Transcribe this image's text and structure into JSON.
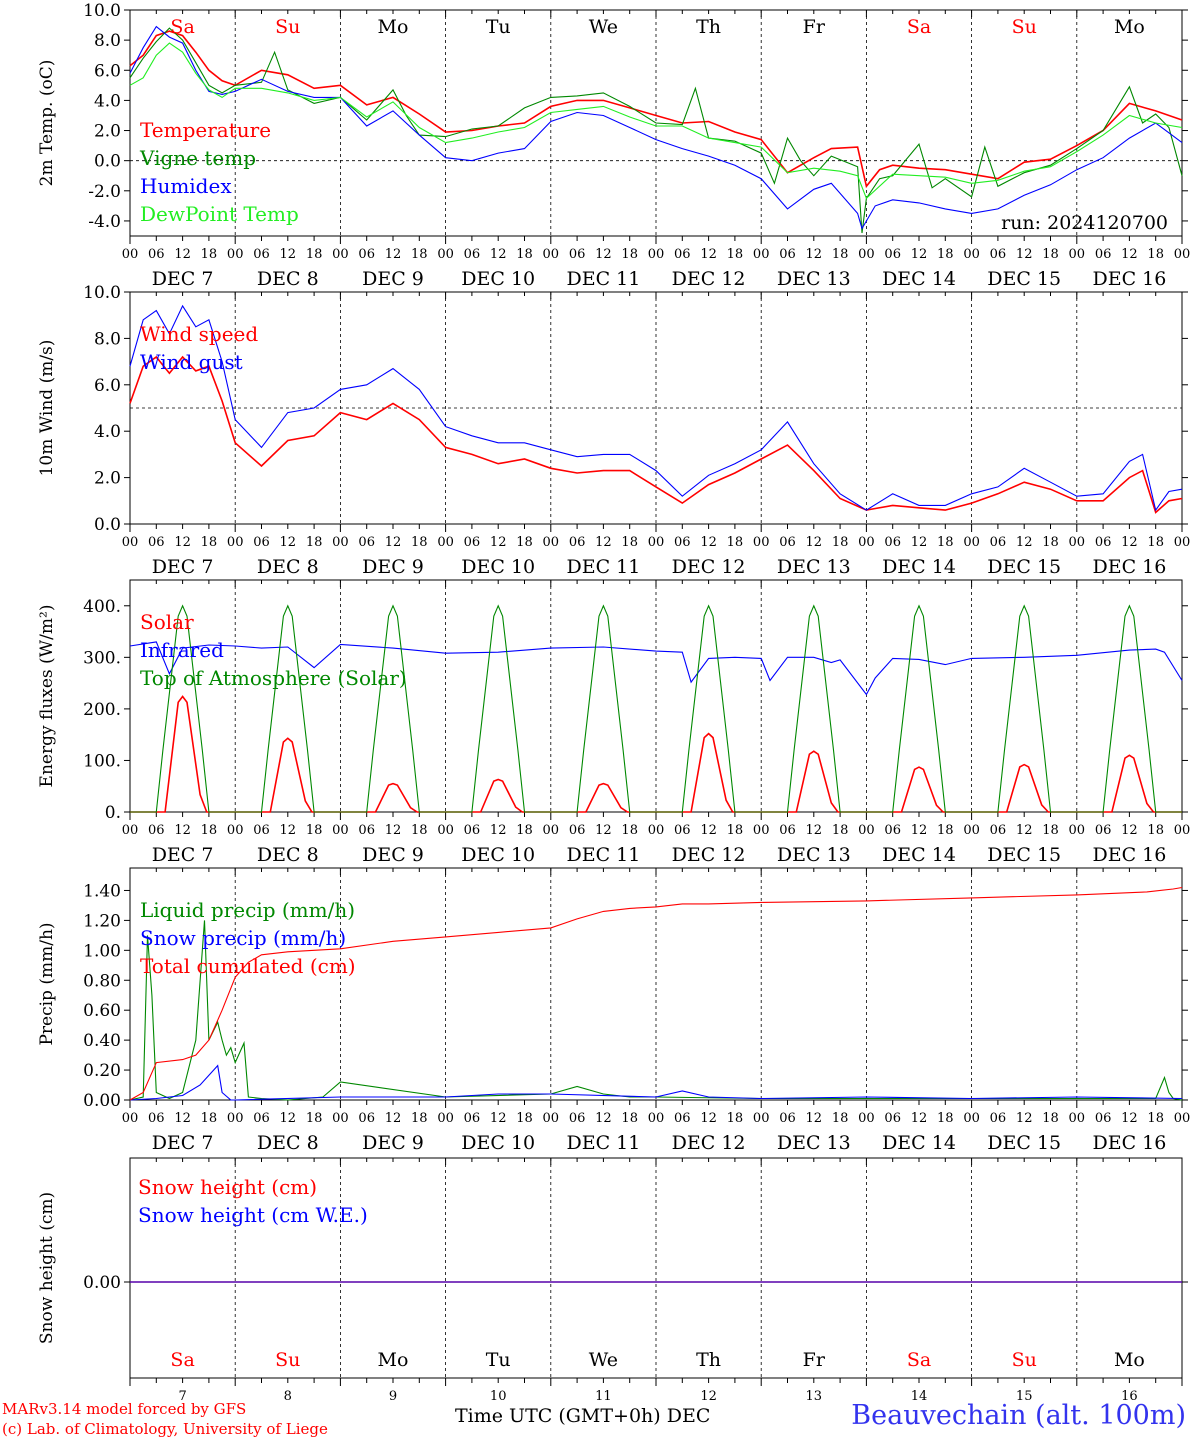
{
  "x_axis": {
    "hour_labels": [
      "00",
      "06",
      "12",
      "18"
    ],
    "date_labels": [
      "DEC  7",
      "DEC  8",
      "DEC  9",
      "DEC 10",
      "DEC 11",
      "DEC 12",
      "DEC 13",
      "DEC 14",
      "DEC 15",
      "DEC 16"
    ],
    "weekday_labels": [
      "Sa",
      "Su",
      "Mo",
      "Tu",
      "We",
      "Th",
      "Fr",
      "Sa",
      "Su",
      "Mo"
    ],
    "weekday_colors": [
      "#ff0000",
      "#ff0000",
      "#000000",
      "#000000",
      "#000000",
      "#000000",
      "#000000",
      "#ff0000",
      "#ff0000",
      "#000000"
    ],
    "day_numbers": [
      "7",
      "8",
      "9",
      "10",
      "11",
      "12",
      "13",
      "14",
      "15",
      "16"
    ],
    "title": "Time UTC (GMT+0h)",
    "month": "DEC"
  },
  "footer": {
    "credit_line1": "MARv3.14 model forced by GFS",
    "credit_line2": "(c) Lab. of Climatology, University of Liege",
    "station": "Beauvechain (alt. 100m)"
  },
  "chart_data": [
    {
      "type": "line",
      "ylabel": "2m Temp. (oC)",
      "ylim": [
        -5,
        10
      ],
      "yticks": [
        10,
        8,
        6,
        4,
        2,
        0,
        -2,
        -4
      ],
      "ytick_labels": [
        "10.0",
        "8.0",
        "6.0",
        "4.0",
        "2.0",
        "0.0",
        "-2.0",
        "-4.0"
      ],
      "reference_line": 0,
      "annotation": "run: 2024120700",
      "series": [
        {
          "name": "Temperature",
          "color": "#ff0000",
          "x": [
            0,
            3,
            6,
            9,
            12,
            15,
            18,
            21,
            24,
            30,
            36,
            42,
            48,
            54,
            60,
            66,
            72,
            78,
            84,
            90,
            96,
            102,
            108,
            114,
            120,
            126,
            132,
            138,
            144,
            150,
            156,
            160,
            166,
            168,
            171,
            174,
            180,
            186,
            192,
            198,
            204,
            210,
            216,
            222,
            228,
            234,
            240
          ],
          "y": [
            6.3,
            7.0,
            8.3,
            8.6,
            8.3,
            7.2,
            6.0,
            5.3,
            5.0,
            6.0,
            5.7,
            4.8,
            5.0,
            3.7,
            4.2,
            3.1,
            1.9,
            2.0,
            2.3,
            2.5,
            3.6,
            4.0,
            4.0,
            3.5,
            3.0,
            2.5,
            2.6,
            1.9,
            1.4,
            -0.8,
            0.2,
            0.8,
            0.9,
            -1.7,
            -0.6,
            -0.3,
            -0.5,
            -0.6,
            -0.9,
            -1.2,
            -0.1,
            0.1,
            1.0,
            2.0,
            3.8,
            3.3,
            2.7
          ]
        },
        {
          "name": "Vigne temp",
          "color": "#008800",
          "x": [
            0,
            3,
            6,
            9,
            12,
            15,
            18,
            21,
            24,
            30,
            33,
            36,
            42,
            48,
            54,
            60,
            63,
            66,
            72,
            78,
            84,
            90,
            96,
            102,
            108,
            114,
            120,
            126,
            129,
            132,
            138,
            144,
            147,
            150,
            153,
            156,
            160,
            166,
            167,
            168,
            171,
            174,
            180,
            183,
            186,
            192,
            195,
            198,
            204,
            210,
            216,
            222,
            228,
            231,
            234,
            237,
            240
          ],
          "y": [
            5.5,
            6.8,
            7.9,
            8.8,
            8.0,
            6.5,
            5.0,
            4.5,
            5.0,
            5.2,
            7.2,
            4.7,
            3.8,
            4.2,
            2.7,
            4.7,
            3.0,
            1.7,
            1.6,
            2.1,
            2.3,
            3.5,
            4.2,
            4.3,
            4.5,
            3.6,
            2.5,
            2.4,
            4.8,
            1.5,
            1.3,
            0.5,
            -1.5,
            1.5,
            0.0,
            -1.0,
            0.3,
            -0.4,
            -4.8,
            -2.5,
            -1.2,
            -1.0,
            1.1,
            -1.8,
            -1.2,
            -2.4,
            0.9,
            -1.7,
            -0.8,
            -0.3,
            0.8,
            2.0,
            4.9,
            2.5,
            3.1,
            2.2,
            -1.0
          ]
        },
        {
          "name": "Humidex",
          "color": "#0000ff",
          "x": [
            0,
            3,
            6,
            9,
            12,
            15,
            18,
            21,
            24,
            30,
            36,
            42,
            48,
            54,
            60,
            66,
            72,
            78,
            84,
            90,
            96,
            102,
            108,
            114,
            120,
            126,
            132,
            138,
            144,
            150,
            156,
            160,
            166,
            167,
            170,
            174,
            180,
            186,
            192,
            198,
            204,
            210,
            216,
            222,
            228,
            234,
            240
          ],
          "y": [
            5.8,
            7.5,
            8.9,
            8.2,
            7.8,
            6.0,
            4.6,
            4.4,
            4.6,
            5.4,
            4.6,
            4.2,
            4.2,
            2.3,
            3.3,
            1.7,
            0.2,
            0.0,
            0.5,
            0.8,
            2.6,
            3.2,
            3.0,
            2.2,
            1.4,
            0.8,
            0.3,
            -0.3,
            -1.2,
            -3.2,
            -1.9,
            -1.5,
            -3.5,
            -4.5,
            -3.0,
            -2.6,
            -2.8,
            -3.2,
            -3.5,
            -3.2,
            -2.3,
            -1.6,
            -0.6,
            0.2,
            1.5,
            2.5,
            1.2
          ]
        },
        {
          "name": "DewPoint Temp",
          "color": "#22ee22",
          "x": [
            0,
            3,
            6,
            9,
            12,
            15,
            18,
            21,
            24,
            30,
            36,
            42,
            48,
            54,
            60,
            66,
            72,
            78,
            84,
            90,
            96,
            102,
            108,
            114,
            120,
            126,
            132,
            138,
            144,
            150,
            156,
            162,
            166,
            168,
            174,
            180,
            186,
            192,
            198,
            204,
            210,
            216,
            222,
            228,
            234,
            240
          ],
          "y": [
            5.0,
            5.5,
            7.0,
            7.8,
            7.2,
            5.8,
            4.7,
            4.2,
            4.8,
            4.8,
            4.5,
            4.0,
            4.2,
            2.9,
            3.9,
            2.2,
            1.2,
            1.5,
            1.9,
            2.2,
            3.2,
            3.4,
            3.6,
            2.9,
            2.3,
            2.3,
            1.5,
            1.2,
            0.9,
            -0.8,
            -0.5,
            -0.7,
            -1.0,
            -2.5,
            -0.9,
            -1.0,
            -1.1,
            -1.5,
            -1.3,
            -0.7,
            -0.4,
            0.6,
            1.7,
            3.0,
            2.5,
            2.2
          ]
        }
      ]
    },
    {
      "type": "line",
      "ylabel": "10m Wind (m/s)",
      "ylim": [
        0,
        10
      ],
      "yticks": [
        10,
        8,
        6,
        4,
        2,
        0
      ],
      "ytick_labels": [
        "10.0",
        "8.0",
        "6.0",
        "4.0",
        "2.0",
        "0.0"
      ],
      "reference_line": 5,
      "series": [
        {
          "name": "Wind speed",
          "color": "#ff0000",
          "x": [
            0,
            3,
            6,
            9,
            12,
            15,
            18,
            21,
            24,
            30,
            36,
            42,
            48,
            54,
            60,
            66,
            72,
            78,
            84,
            90,
            96,
            102,
            108,
            114,
            120,
            126,
            132,
            138,
            144,
            150,
            156,
            162,
            168,
            174,
            180,
            186,
            192,
            198,
            204,
            210,
            216,
            222,
            228,
            231,
            234,
            237,
            240
          ],
          "y": [
            5.2,
            6.8,
            7.2,
            6.5,
            7.2,
            6.6,
            6.8,
            5.3,
            3.5,
            2.5,
            3.6,
            3.8,
            4.8,
            4.5,
            5.2,
            4.5,
            3.3,
            3.0,
            2.6,
            2.8,
            2.4,
            2.2,
            2.3,
            2.3,
            1.6,
            0.9,
            1.7,
            2.2,
            2.8,
            3.4,
            2.3,
            1.1,
            0.6,
            0.8,
            0.7,
            0.6,
            0.9,
            1.3,
            1.8,
            1.5,
            1.0,
            1.0,
            2.0,
            2.3,
            0.5,
            1.0,
            1.1
          ]
        },
        {
          "name": "Wind gust",
          "color": "#0000ff",
          "x": [
            0,
            3,
            6,
            9,
            12,
            15,
            18,
            21,
            24,
            30,
            36,
            42,
            48,
            54,
            60,
            66,
            72,
            78,
            84,
            90,
            96,
            102,
            108,
            114,
            120,
            126,
            132,
            138,
            144,
            150,
            156,
            162,
            168,
            174,
            180,
            186,
            192,
            198,
            204,
            210,
            216,
            222,
            228,
            231,
            234,
            237,
            240
          ],
          "y": [
            6.8,
            8.8,
            9.2,
            8.2,
            9.4,
            8.5,
            8.8,
            7.0,
            4.5,
            3.3,
            4.8,
            5.0,
            5.8,
            6.0,
            6.7,
            5.8,
            4.2,
            3.8,
            3.5,
            3.5,
            3.2,
            2.9,
            3.0,
            3.0,
            2.3,
            1.2,
            2.1,
            2.6,
            3.2,
            4.4,
            2.6,
            1.3,
            0.6,
            1.3,
            0.8,
            0.8,
            1.3,
            1.6,
            2.4,
            1.8,
            1.2,
            1.3,
            2.7,
            3.0,
            0.6,
            1.4,
            1.5
          ]
        }
      ]
    },
    {
      "type": "line",
      "ylabel": "Energy fluxes (W/m²)",
      "ylim": [
        0,
        400
      ],
      "yticks": [
        400,
        300,
        200,
        100,
        0
      ],
      "ytick_labels": [
        "400.",
        "300.",
        "200.",
        "100.",
        "0."
      ],
      "series": [
        {
          "name": "Solar",
          "color": "#ff0000",
          "values_by_day": [
            224,
            143,
            55,
            63,
            55,
            152,
            118,
            87,
            92,
            110
          ],
          "peak_hour": 12
        },
        {
          "name": "Infrared",
          "color": "#0000ff",
          "x": [
            0,
            6,
            9,
            12,
            18,
            24,
            30,
            36,
            42,
            48,
            60,
            72,
            84,
            96,
            108,
            120,
            126,
            128,
            132,
            138,
            144,
            146,
            150,
            156,
            160,
            162,
            168,
            170,
            174,
            180,
            186,
            192,
            204,
            216,
            228,
            234,
            236,
            240
          ],
          "y": [
            322,
            330,
            268,
            318,
            324,
            322,
            318,
            320,
            280,
            325,
            318,
            308,
            310,
            318,
            320,
            312,
            310,
            252,
            298,
            300,
            298,
            255,
            300,
            300,
            290,
            295,
            228,
            260,
            298,
            296,
            286,
            298,
            300,
            304,
            314,
            316,
            310,
            255
          ]
        },
        {
          "name": "Top of Atmosphere (Solar)",
          "color": "#008800",
          "values_by_day": [
            400,
            400,
            400,
            400,
            400,
            400,
            400,
            400,
            400,
            400
          ],
          "peak_hour": 12
        }
      ]
    },
    {
      "type": "line",
      "ylabel": "Precip (mm/h)",
      "ylim": [
        0,
        1.5
      ],
      "yticks": [
        1.4,
        1.2,
        1.0,
        0.8,
        0.6,
        0.4,
        0.2,
        0.0
      ],
      "ytick_labels": [
        "1.40",
        "1.20",
        "1.00",
        "0.80",
        "0.60",
        "0.40",
        "0.20",
        "0.00"
      ],
      "series": [
        {
          "name": "Liquid precip (mm/h)",
          "color": "#008800",
          "x": [
            0,
            3,
            4,
            5,
            6,
            9,
            12,
            15,
            17,
            18,
            20,
            21,
            22,
            23,
            24,
            26,
            27,
            30,
            36,
            44,
            48,
            72,
            96,
            102,
            108,
            114,
            120,
            144,
            168,
            192,
            216,
            234,
            236,
            237,
            238,
            240
          ],
          "y": [
            0,
            0.02,
            1.1,
            0.7,
            0.05,
            0.01,
            0.05,
            0.4,
            1.2,
            0.4,
            0.52,
            0.4,
            0.3,
            0.35,
            0.25,
            0.38,
            0.02,
            0.01,
            0,
            0.02,
            0.12,
            0.02,
            0.04,
            0.09,
            0.04,
            0.02,
            0.02,
            0.01,
            0.01,
            0.01,
            0.01,
            0.01,
            0.15,
            0.05,
            0.01,
            0
          ]
        },
        {
          "name": "Snow precip (mm/h)",
          "color": "#0000ff",
          "x": [
            0,
            6,
            12,
            16,
            20,
            21,
            23,
            24,
            48,
            72,
            84,
            96,
            120,
            126,
            132,
            144,
            168,
            192,
            216,
            240
          ],
          "y": [
            0,
            0.01,
            0.03,
            0.1,
            0.23,
            0.05,
            0,
            0,
            0.02,
            0.02,
            0.04,
            0.04,
            0.02,
            0.06,
            0.02,
            0.01,
            0.02,
            0.01,
            0.02,
            0.01
          ]
        },
        {
          "name": "Total cumulated (cm)",
          "color": "#ff0000",
          "x": [
            0,
            3,
            6,
            12,
            15,
            18,
            21,
            24,
            27,
            30,
            36,
            48,
            60,
            72,
            84,
            96,
            102,
            108,
            114,
            120,
            126,
            132,
            144,
            168,
            192,
            216,
            232,
            238,
            240
          ],
          "y": [
            0,
            0.05,
            0.25,
            0.27,
            0.3,
            0.4,
            0.6,
            0.82,
            0.92,
            0.97,
            0.99,
            1.01,
            1.06,
            1.09,
            1.12,
            1.15,
            1.21,
            1.26,
            1.28,
            1.29,
            1.31,
            1.31,
            1.32,
            1.33,
            1.35,
            1.37,
            1.39,
            1.41,
            1.42
          ]
        }
      ]
    },
    {
      "type": "line",
      "ylabel": "Snow height (cm)",
      "yticks": [
        0
      ],
      "ytick_labels": [
        "0.00"
      ],
      "series": [
        {
          "name": "Snow height (cm)",
          "color": "#ff0000",
          "x": [
            0,
            240
          ],
          "y": [
            0,
            0
          ]
        },
        {
          "name": "Snow height (cm W.E.)",
          "color": "#0000ff",
          "x": [
            0,
            240
          ],
          "y": [
            0,
            0
          ]
        }
      ]
    }
  ]
}
